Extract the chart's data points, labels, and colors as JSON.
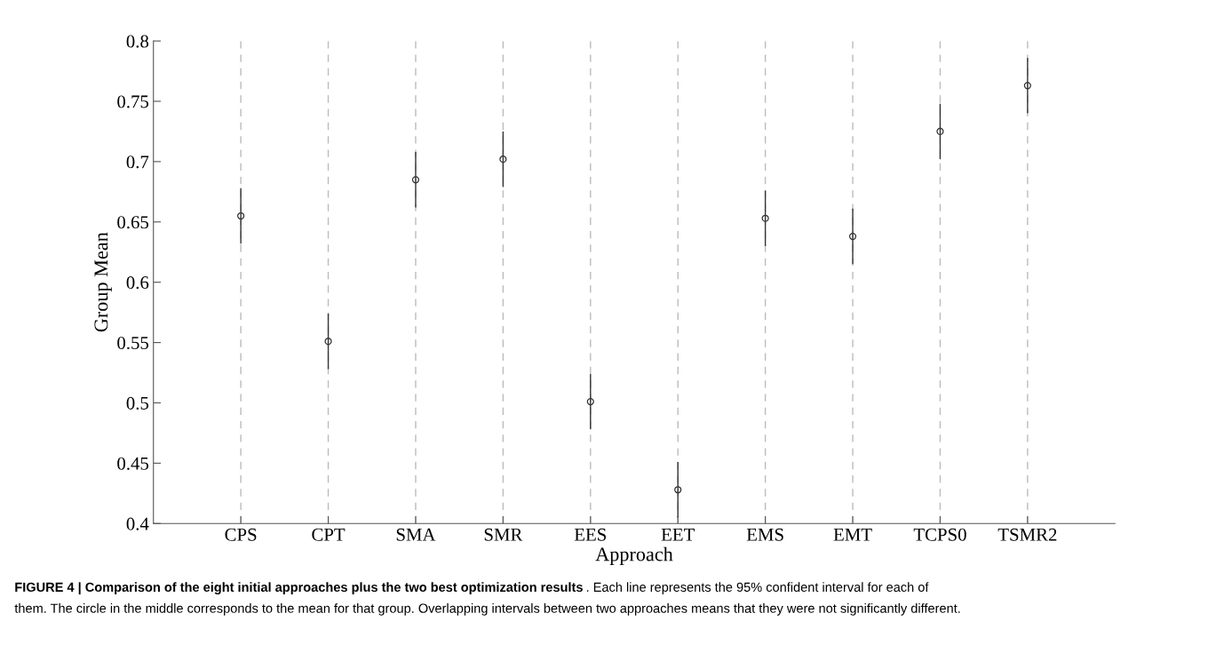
{
  "chart_data": {
    "type": "scatter",
    "title": "FIGURE 4 | Comparison of the eight initial approaches plus the two best optimization results",
    "xlabel": "Approach",
    "ylabel": "Group Mean",
    "categories": [
      "CPS",
      "CPT",
      "SMA",
      "SMR",
      "EES",
      "EET",
      "EMS",
      "EMT",
      "TCPS0",
      "TSMR2"
    ],
    "values": [
      0.655,
      0.551,
      0.685,
      0.702,
      0.501,
      0.428,
      0.653,
      0.638,
      0.725,
      0.763
    ],
    "errors": [
      0.023,
      0.023,
      0.023,
      0.023,
      0.023,
      0.023,
      0.023,
      0.023,
      0.023,
      0.023
    ],
    "color": "#333333",
    "marker": "circle",
    "grid": "x",
    "ylim": [
      0.4,
      0.8
    ],
    "yticks": [
      0.4,
      0.45,
      0.5,
      0.55,
      0.6,
      0.65,
      0.7,
      0.75,
      0.8
    ],
    "annotations": [
      ". Each line represents the 95% confident interval for each of",
      "them. The circle in the middle corresponds to the mean for that group. Overlapping intervals between two approaches means that they were not significantly different."
    ]
  }
}
